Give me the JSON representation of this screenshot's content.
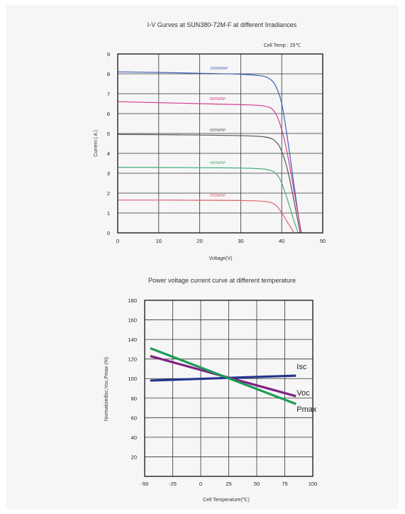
{
  "chart_data": [
    {
      "type": "line",
      "title": "I-V Gurves at SUN380-72M-F at different Irradiances",
      "annotation": "Cell Temp : 25℃",
      "xlabel": "Voltage(V)",
      "ylabel": "Current ( A )",
      "xlim": [
        0,
        50
      ],
      "ylim": [
        0,
        9
      ],
      "x_ticks": [
        "0",
        "10",
        "20",
        "30",
        "40",
        "50"
      ],
      "y_ticks": [
        "0",
        "1",
        "2",
        "3",
        "4",
        "5",
        "6",
        "7",
        "8",
        "9"
      ],
      "grid": true,
      "series": [
        {
          "name": "1000W/M²",
          "color": "#3b5fb8",
          "points": [
            [
              0,
              8.1
            ],
            [
              10,
              8.07
            ],
            [
              20,
              8.03
            ],
            [
              30,
              7.98
            ],
            [
              35,
              7.9
            ],
            [
              37,
              7.75
            ],
            [
              38.5,
              7.4
            ],
            [
              40,
              6.5
            ],
            [
              41.5,
              4.6
            ],
            [
              43,
              2.4
            ],
            [
              44.5,
              0.3
            ],
            [
              45,
              0
            ]
          ]
        },
        {
          "name": "800W/M²",
          "color": "#d43f8d",
          "points": [
            [
              0,
              6.6
            ],
            [
              10,
              6.55
            ],
            [
              20,
              6.5
            ],
            [
              30,
              6.45
            ],
            [
              35,
              6.4
            ],
            [
              37.5,
              6.25
            ],
            [
              39,
              5.8
            ],
            [
              40.5,
              4.8
            ],
            [
              42,
              3.3
            ],
            [
              43.5,
              1.5
            ],
            [
              44.8,
              0
            ]
          ]
        },
        {
          "name": "600W/M²",
          "color": "#555555",
          "points": [
            [
              0,
              4.95
            ],
            [
              10,
              4.94
            ],
            [
              20,
              4.92
            ],
            [
              30,
              4.89
            ],
            [
              36,
              4.82
            ],
            [
              38.5,
              4.6
            ],
            [
              40,
              4.1
            ],
            [
              41.5,
              3.1
            ],
            [
              43,
              1.6
            ],
            [
              44.5,
              0
            ]
          ]
        },
        {
          "name": "400W/M²",
          "color": "#46b07a",
          "points": [
            [
              0,
              3.3
            ],
            [
              10,
              3.29
            ],
            [
              20,
              3.28
            ],
            [
              30,
              3.26
            ],
            [
              36,
              3.2
            ],
            [
              38.5,
              3.0
            ],
            [
              40,
              2.5
            ],
            [
              41.5,
              1.6
            ],
            [
              43,
              0.6
            ],
            [
              44,
              0
            ]
          ]
        },
        {
          "name": "200W/M²",
          "color": "#e0606f",
          "points": [
            [
              0,
              1.65
            ],
            [
              10,
              1.65
            ],
            [
              20,
              1.64
            ],
            [
              30,
              1.63
            ],
            [
              36,
              1.58
            ],
            [
              38.5,
              1.4
            ],
            [
              40,
              1.0
            ],
            [
              41.5,
              0.5
            ],
            [
              43,
              0
            ]
          ]
        }
      ]
    },
    {
      "type": "line",
      "title": "Power voltage current curve at different temperature",
      "xlabel": "Cell Temperature(℃)",
      "ylabel": "Normalizedlsc,Voc,Pmax  (%)",
      "xlim": [
        -50,
        100
      ],
      "ylim": [
        0,
        180
      ],
      "x_ticks": [
        "-50",
        "-25",
        "0",
        "25",
        "50",
        "75",
        "100"
      ],
      "y_ticks": [
        "20",
        "40",
        "60",
        "80",
        "100",
        "120",
        "140",
        "160",
        "180"
      ],
      "grid": true,
      "series": [
        {
          "name": "Isc",
          "color": "#24358e",
          "x": [
            -45,
            85
          ],
          "y": [
            98,
            103
          ]
        },
        {
          "name": "Voc",
          "color": "#7e2383",
          "x": [
            -45,
            85
          ],
          "y": [
            123,
            82
          ]
        },
        {
          "name": "Pmax",
          "color": "#1e9a58",
          "x": [
            -45,
            85
          ],
          "y": [
            131,
            74
          ]
        }
      ]
    }
  ]
}
